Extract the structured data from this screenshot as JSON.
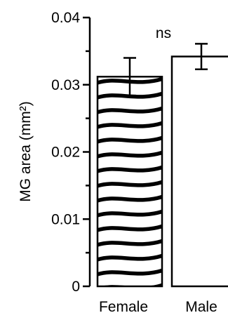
{
  "chart_data": {
    "type": "bar",
    "categories": [
      "Female",
      "Male"
    ],
    "values": [
      0.0312,
      0.0342
    ],
    "errors": [
      0.0028,
      0.0019
    ],
    "patterns": [
      "wave",
      "none"
    ],
    "ylabel": "MG area (mm²)",
    "ylim": [
      0,
      0.04
    ],
    "yticks": [
      "0",
      "0.01",
      "0.02",
      "0.03",
      "0.04"
    ],
    "annotation": "ns",
    "grid": false,
    "colors": {
      "bar_fill": "#ffffff",
      "stroke": "#000000"
    }
  }
}
